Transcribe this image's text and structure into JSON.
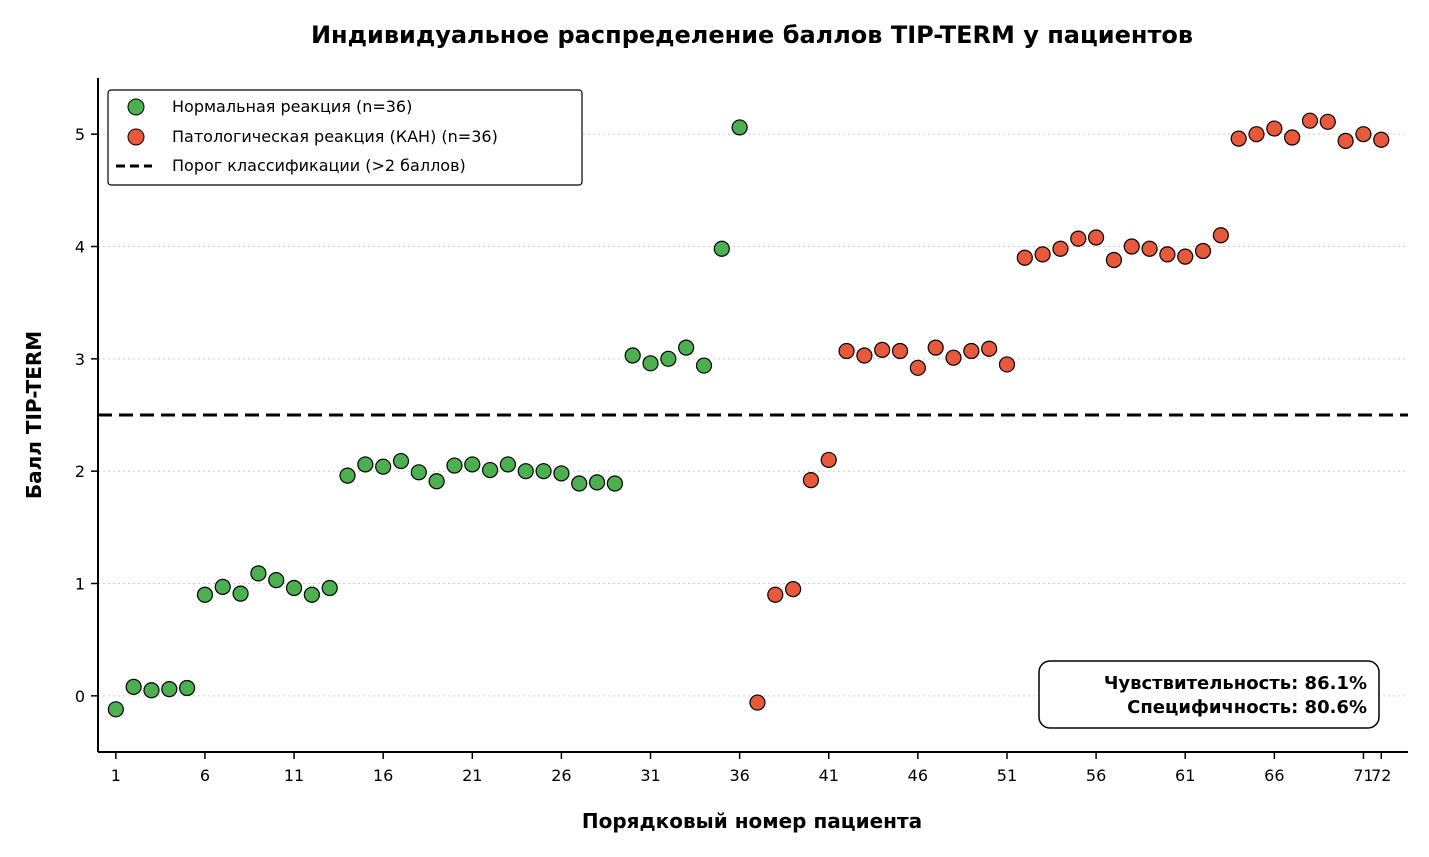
{
  "chart_data": {
    "type": "scatter",
    "title": "Индивидуальное распределение баллов TIP-TERM у пациентов",
    "xlabel": "Порядковый номер пациента",
    "ylabel": "Балл TIP-TERM",
    "xlim": [
      0,
      73.5
    ],
    "ylim": [
      -0.5,
      5.5
    ],
    "x_ticks": [
      1,
      6,
      11,
      16,
      21,
      26,
      31,
      36,
      41,
      46,
      51,
      56,
      61,
      66,
      71,
      72
    ],
    "y_ticks": [
      0,
      1,
      2,
      3,
      4,
      5
    ],
    "grid": "horizontal-dotted",
    "legend_position": "top-left",
    "threshold": {
      "value": 2.5,
      "label": "Порог классификации (>2 баллов)",
      "color": "#000000"
    },
    "series": [
      {
        "name": "Нормальная реакция (n=36)",
        "color": "#4CAF50",
        "x": [
          1,
          2,
          3,
          4,
          5,
          6,
          7,
          8,
          9,
          10,
          11,
          12,
          13,
          14,
          15,
          16,
          17,
          18,
          19,
          20,
          21,
          22,
          23,
          24,
          25,
          26,
          27,
          28,
          29,
          30,
          31,
          32,
          33,
          34,
          35,
          36
        ],
        "y": [
          -0.12,
          0.08,
          0.05,
          0.06,
          0.07,
          0.9,
          0.97,
          0.91,
          1.09,
          1.03,
          0.96,
          0.9,
          0.96,
          1.96,
          2.06,
          2.04,
          2.09,
          1.99,
          1.91,
          2.05,
          2.06,
          2.01,
          2.06,
          2.0,
          2.0,
          1.98,
          1.89,
          1.9,
          1.89,
          3.03,
          2.96,
          3.0,
          3.1,
          2.94,
          3.98,
          5.06
        ]
      },
      {
        "name": "Патологическая реакция (КАН) (n=36)",
        "color": "#E8593C",
        "x": [
          37,
          38,
          39,
          40,
          41,
          42,
          43,
          44,
          45,
          46,
          47,
          48,
          49,
          50,
          51,
          52,
          53,
          54,
          55,
          56,
          57,
          58,
          59,
          60,
          61,
          62,
          63,
          64,
          65,
          66,
          67,
          68,
          69,
          70,
          71,
          72
        ],
        "y": [
          -0.06,
          0.9,
          0.95,
          1.92,
          2.1,
          3.07,
          3.03,
          3.08,
          3.07,
          2.92,
          3.1,
          3.01,
          3.07,
          3.09,
          2.95,
          3.9,
          3.93,
          3.98,
          4.07,
          4.08,
          3.88,
          4.0,
          3.98,
          3.93,
          3.91,
          3.96,
          4.1,
          4.96,
          5.0,
          5.05,
          4.97,
          5.12,
          5.11,
          4.94,
          5.0,
          4.95
        ]
      }
    ],
    "annotation": {
      "lines": [
        "Чувствительность: 86.1%",
        "Специфичность: 80.6%"
      ],
      "position": "bottom-right"
    }
  }
}
